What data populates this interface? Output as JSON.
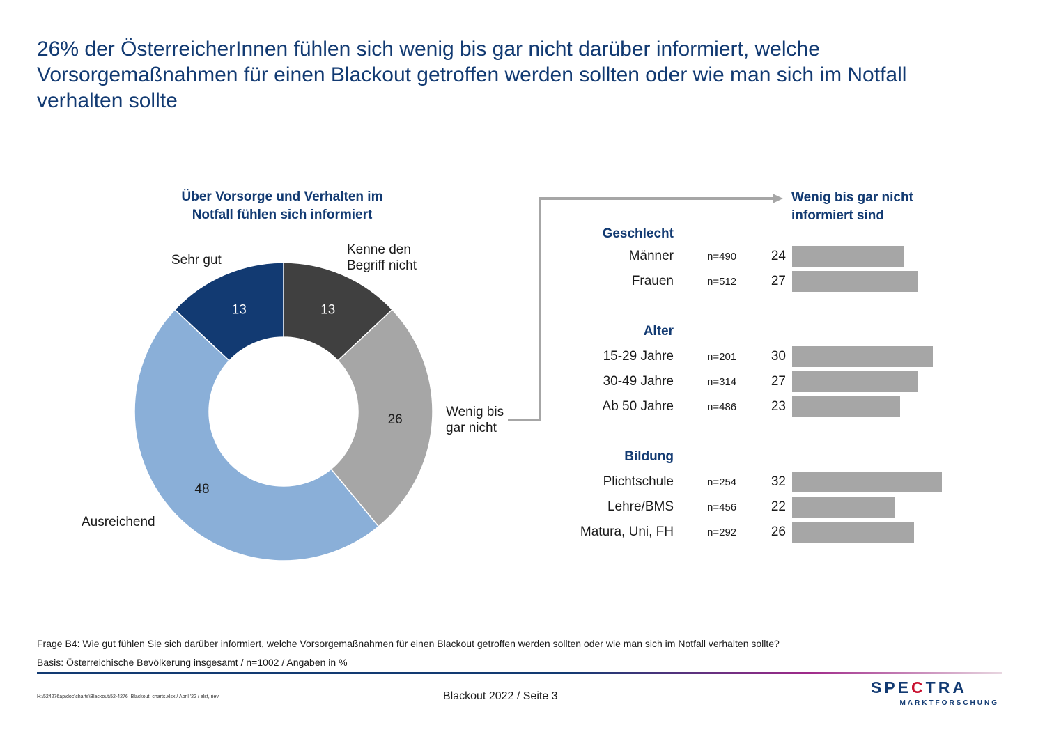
{
  "title": "26% der ÖsterreicherInnen fühlen sich wenig bis gar nicht darüber informiert, welche Vorsorgemaßnahmen für einen Blackout getroffen werden sollten oder wie man sich im Notfall verhalten sollte",
  "chart_data": [
    {
      "type": "pie",
      "variant": "donut",
      "title": "Über Vorsorge und Verhalten im Notfall fühlen sich informiert",
      "slices": [
        {
          "label": "Kenne den Begriff nicht",
          "value": 13,
          "color": "#404040"
        },
        {
          "label": "Wenig bis gar nicht",
          "value": 26,
          "color": "#a6a6a6"
        },
        {
          "label": "Ausreichend",
          "value": 48,
          "color": "#8aafd8"
        },
        {
          "label": "Sehr gut",
          "value": 13,
          "color": "#123a72"
        }
      ]
    },
    {
      "type": "bar",
      "orientation": "horizontal",
      "title": "Wenig bis gar nicht informiert sind",
      "bar_color": "#a6a6a6",
      "groups": [
        {
          "name": "Geschlecht",
          "rows": [
            {
              "label": "Männer",
              "n": "n=490",
              "value": 24
            },
            {
              "label": "Frauen",
              "n": "n=512",
              "value": 27
            }
          ]
        },
        {
          "name": "Alter",
          "rows": [
            {
              "label": "15-29 Jahre",
              "n": "n=201",
              "value": 30
            },
            {
              "label": "30-49 Jahre",
              "n": "n=314",
              "value": 27
            },
            {
              "label": "Ab 50 Jahre",
              "n": "n=486",
              "value": 23
            }
          ]
        },
        {
          "name": "Bildung",
          "rows": [
            {
              "label": "Plichtschule",
              "n": "n=254",
              "value": 32
            },
            {
              "label": "Lehre/BMS",
              "n": "n=456",
              "value": 22
            },
            {
              "label": "Matura, Uni, FH",
              "n": "n=292",
              "value": 26
            }
          ]
        }
      ]
    }
  ],
  "footnote": {
    "question": "Frage B4: Wie gut fühlen Sie sich darüber informiert, welche Vorsorgemaßnahmen für einen Blackout getroffen werden sollten oder wie man sich im Notfall verhalten sollte?",
    "basis": "Basis: Österreichische Bevölkerung insgesamt / n=1002 / Angaben in %"
  },
  "footer": {
    "filepath": "H:\\524276ap\\doc\\charts\\Blackout\\52-4276_Blackout_charts.xlsx / April '22 / elst, riev",
    "page": "Blackout 2022  /  Seite  3"
  },
  "logo": {
    "word_start": "SPE",
    "word_accent": "C",
    "word_end": "TRA",
    "sub": "MARKTFORSCHUNG"
  }
}
